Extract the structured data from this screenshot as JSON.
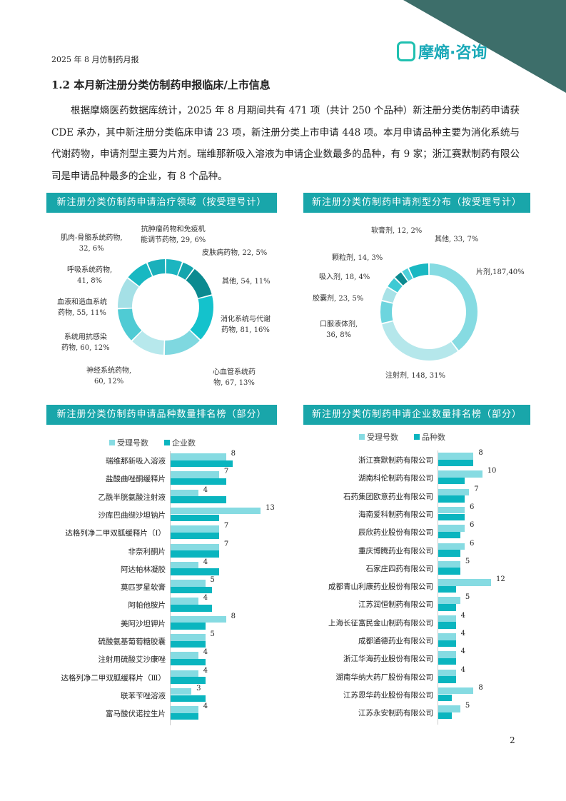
{
  "header": {
    "report_title": "2025 年 8 月仿制药月报",
    "logo_text": "摩熵·咨询",
    "brand_color": "#19a6aa",
    "corner_color": "#3d6e6a"
  },
  "section": {
    "title": "1.2 本月新注册分类仿制药申报临床/上市信息",
    "paragraph": "根据摩熵医药数据库统计，2025 年 8 月期间共有 471 项（共计 250 个品种）新注册分类仿制药申请获 CDE 承办，其中新注册分类临床申请 23 项，新注册分类上市申请 448 项。本月申请品种主要为消化系统与代谢药物，申请剂型主要为片剂。瑞维那新吸入溶液为申请企业数最多的品种，有 9 家；浙江赛默制药有限公司是申请品种最多的企业，有 8 个品种。"
  },
  "chart_data": [
    {
      "type": "pie",
      "title": "新注册分类仿制药申请治疗领域（按受理号计）",
      "donut": true,
      "slices": [
        {
          "label": "抗肿瘤药物和免疫机能调节药物, 29, 6%",
          "value": 29,
          "color": "#1bb5c0"
        },
        {
          "label": "皮肤病药物, 22, 5%",
          "value": 22,
          "color": "#14a5ad"
        },
        {
          "label": "其他, 54, 11%",
          "value": 54,
          "color": "#0b8a90"
        },
        {
          "label": "消化系统与代谢药物, 81, 16%",
          "value": 81,
          "color": "#14c2cc"
        },
        {
          "label": "心血管系统药物, 67, 13%",
          "value": 67,
          "color": "#7fd8e0"
        },
        {
          "label": "神经系统药物, 60, 12%",
          "value": 60,
          "color": "#b7e8ec"
        },
        {
          "label": "系统用抗感染药物, 60, 12%",
          "value": 60,
          "color": "#4fcbd4"
        },
        {
          "label": "血液和造血系统药物, 55, 11%",
          "value": 55,
          "color": "#a5e0e6"
        },
        {
          "label": "呼吸系统药物, 41, 8%",
          "value": 41,
          "color": "#18b8c2"
        },
        {
          "label": "肌肉-骨骼系统药物, 32, 6%",
          "value": 32,
          "color": "#1ab0bb"
        }
      ]
    },
    {
      "type": "pie",
      "title": "新注册分类仿制药申请剂型分布（按受理号计）",
      "donut": true,
      "slices": [
        {
          "label": "片剂,187,40%",
          "value": 187,
          "color": "#86dbe2"
        },
        {
          "label": "注射剂, 148, 31%",
          "value": 148,
          "color": "#b5e7eb"
        },
        {
          "label": "口服液体剂, 36, 8%",
          "value": 36,
          "color": "#6dd5de"
        },
        {
          "label": "胶囊剂, 23, 5%",
          "value": 23,
          "color": "#a8e2e7"
        },
        {
          "label": "吸入剂, 18, 4%",
          "value": 18,
          "color": "#3dcad4"
        },
        {
          "label": "颗粒剂, 14, 3%",
          "value": 14,
          "color": "#0b8a90"
        },
        {
          "label": "软膏剂, 12, 2%",
          "value": 12,
          "color": "#4dd0da"
        },
        {
          "label": "其他, 33, 7%",
          "value": 33,
          "color": "#1ab8c2"
        }
      ]
    },
    {
      "type": "bar",
      "orientation": "horizontal",
      "title": "新注册分类仿制药申请品种数量排名榜（部分）",
      "legend_position": "top",
      "categories": [
        "瑞维那新吸入溶液",
        "盐酸曲唑酮缓释片",
        "乙酰半胱氨酸注射液",
        "沙库巴曲缬沙坦钠片",
        "达格列净二甲双胍缓释片（Ⅰ）",
        "非奈利酮片",
        "阿达帕林凝胶",
        "莫匹罗星软膏",
        "阿帕他胺片",
        "美阿沙坦钾片",
        "硫酸氨基葡萄糖胶囊",
        "注射用硫酸艾沙康唑",
        "达格列净二甲双胍缓释片（Ⅲ）",
        "联苯苄唑溶液",
        "富马酸伏诺拉生片"
      ],
      "series": [
        {
          "name": "受理号数",
          "color": "#86dbe2",
          "values": [
            8,
            7,
            4,
            13,
            7,
            7,
            4,
            5,
            4,
            8,
            5,
            4,
            4,
            3,
            4
          ]
        },
        {
          "name": "企业数",
          "color": "#0ab5bf",
          "values": [
            9,
            8,
            8,
            7,
            7,
            7,
            7,
            6,
            6,
            5,
            5,
            5,
            5,
            5,
            4
          ]
        }
      ]
    },
    {
      "type": "bar",
      "orientation": "horizontal",
      "title": "新注册分类仿制药申请企业数量排名榜（部分）",
      "legend_position": "top",
      "categories": [
        "浙江赛默制药有限公司",
        "湖南科伦制药有限公司",
        "石药集团欧意药业有限公司",
        "海南爱科制药有限公司",
        "辰欣药业股份有限公司",
        "重庆博腾药业有限公司",
        "石家庄四药有限公司",
        "成都青山利康药业股份有限公司",
        "江苏润恒制药有限公司",
        "上海长征富民金山制药有限公司",
        "成都通德药业有限公司",
        "浙江华海药业股份有限公司",
        "湖南华纳大药厂股份有限公司",
        "江苏恩华药业股份有限公司",
        "江苏永安制药有限公司"
      ],
      "series": [
        {
          "name": "受理号数",
          "color": "#86dbe2",
          "values": [
            8,
            10,
            7,
            6,
            6,
            6,
            5,
            12,
            5,
            4,
            4,
            4,
            4,
            8,
            5
          ]
        },
        {
          "name": "品种数",
          "color": "#0ab5bf",
          "values": [
            8,
            6,
            6,
            6,
            5,
            5,
            5,
            4,
            4,
            4,
            4,
            4,
            4,
            3,
            3
          ]
        }
      ]
    }
  ],
  "page_number": "2"
}
